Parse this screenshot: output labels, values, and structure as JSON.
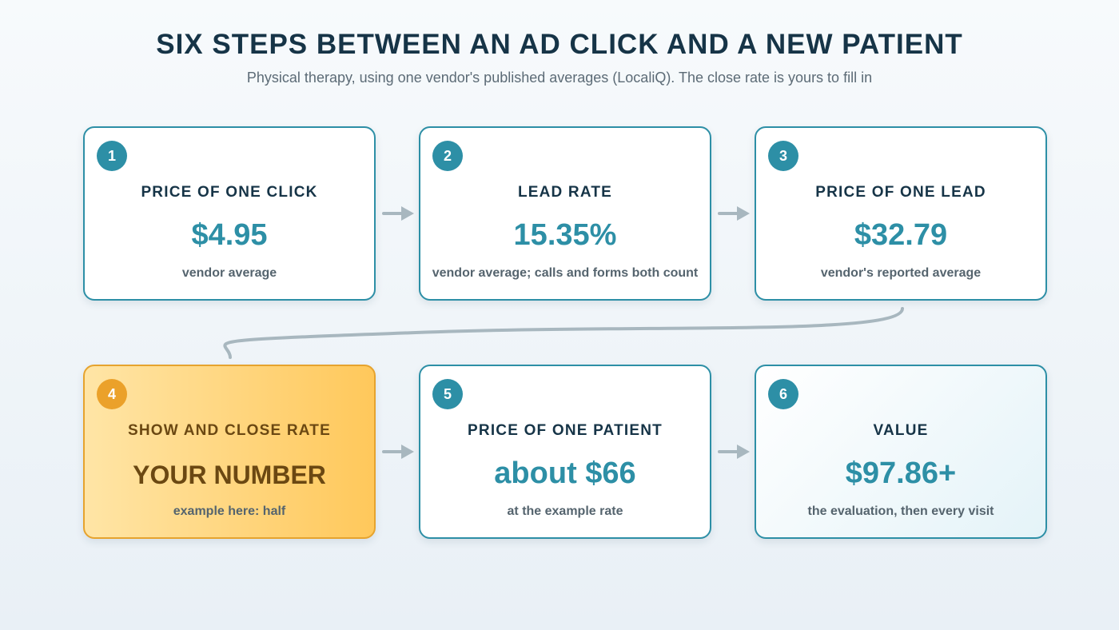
{
  "header": {
    "title": "SIX STEPS BETWEEN AN AD CLICK AND A NEW PATIENT",
    "subtitle": "Physical therapy, using one vendor's published averages (LocaliQ). The close rate is yours to fill in"
  },
  "colors": {
    "accent": "#2d8fa6",
    "highlight": "#ffc85b",
    "highlight_border": "#e6a32e",
    "connector": "#a8b7bf",
    "heading": "#163447"
  },
  "steps": [
    {
      "number": "1",
      "label": "PRICE OF ONE CLICK",
      "value": "$4.95",
      "note": "vendor average"
    },
    {
      "number": "2",
      "label": "LEAD RATE",
      "value": "15.35%",
      "note": "vendor average; calls and forms both count"
    },
    {
      "number": "3",
      "label": "PRICE OF ONE LEAD",
      "value": "$32.79",
      "note": "vendor's reported average"
    },
    {
      "number": "4",
      "label": "SHOW AND CLOSE RATE",
      "value": "YOUR NUMBER",
      "note": "example here: half"
    },
    {
      "number": "5",
      "label": "PRICE OF ONE PATIENT",
      "value": "about $66",
      "note": "at the example rate"
    },
    {
      "number": "6",
      "label": "VALUE",
      "value": "$97.86+",
      "note": "the evaluation, then every visit"
    }
  ]
}
